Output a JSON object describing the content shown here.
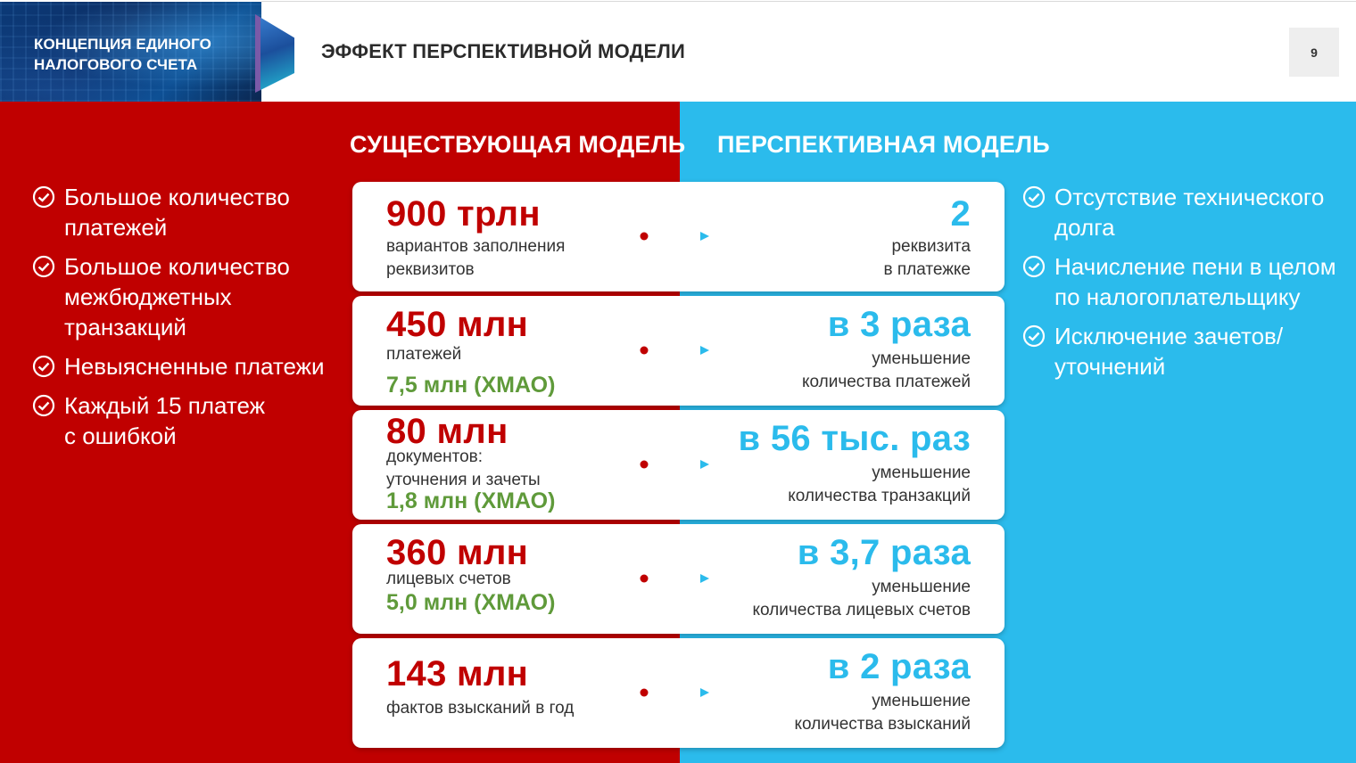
{
  "header": {
    "brand_line1": "КОНЦЕПЦИЯ ЕДИНОГО",
    "brand_line2": "НАЛОГОВОГО СЧЕТА",
    "title": "ЭФФЕКТ ПЕРСПЕКТИВНОЙ МОДЕЛИ",
    "page_number": "9"
  },
  "colors": {
    "left_panel": "#c00000",
    "right_panel": "#2bbbec",
    "green_text": "#5f9a3a"
  },
  "columns": {
    "left_heading": "СУЩЕСТВУЮЩАЯ МОДЕЛЬ",
    "right_heading": "ПЕРСПЕКТИВНАЯ МОДЕЛЬ"
  },
  "left_bullets": [
    {
      "line1": "Большое количество",
      "line2": "платежей",
      "line3": ""
    },
    {
      "line1": "Большое количество",
      "line2": "межбюджетных",
      "line3": "транзакций"
    },
    {
      "line1": "Невыясненные платежи",
      "line2": "",
      "line3": ""
    },
    {
      "line1": "Каждый 15 платеж",
      "line2": "с ошибкой",
      "line3": ""
    }
  ],
  "right_bullets": [
    {
      "line1": "Отсутствие технического",
      "line2": "долга"
    },
    {
      "line1": "Начисление пени в целом",
      "line2": "по налогоплательщику"
    },
    {
      "line1": "Исключение зачетов/",
      "line2": "уточнений"
    }
  ],
  "cards": [
    {
      "left_value": "900 трлн",
      "left_desc1": "вариантов заполнения",
      "left_desc2": "реквизитов",
      "left_green": "",
      "right_value": "2",
      "right_desc1": "реквизита",
      "right_desc2": "в платежке"
    },
    {
      "left_value": "450 млн",
      "left_desc1": "платежей",
      "left_desc2": "",
      "left_green": "7,5 млн (ХМАО)",
      "right_value": "в 3 раза",
      "right_desc1": "уменьшение",
      "right_desc2": "количества платежей"
    },
    {
      "left_value": "80 млн",
      "left_desc1": "документов:",
      "left_desc2": "уточнения и зачеты",
      "left_green": "1,8 млн (ХМАО)",
      "right_value": "в 56 тыс. раз",
      "right_desc1": "уменьшение",
      "right_desc2": "количества транзакций"
    },
    {
      "left_value": "360 млн",
      "left_desc1": "лицевых счетов",
      "left_desc2": "",
      "left_green": "5,0 млн (ХМАО)",
      "right_value": "в 3,7 раза",
      "right_desc1": "уменьшение",
      "right_desc2": "количества лицевых счетов"
    },
    {
      "left_value": "143 млн",
      "left_desc1": "фактов взысканий в год",
      "left_desc2": "",
      "left_green": "",
      "right_value": "в 2 раза",
      "right_desc1": "уменьшение",
      "right_desc2": "количества взысканий"
    }
  ]
}
